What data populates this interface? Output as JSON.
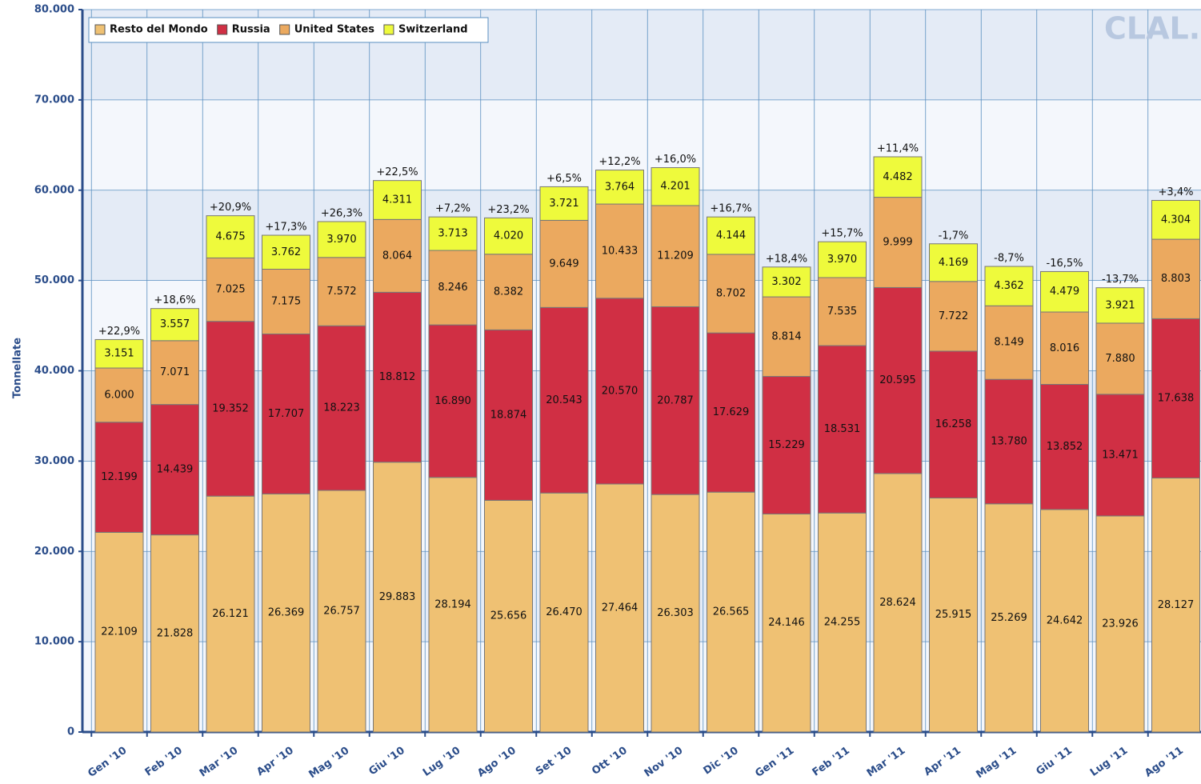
{
  "chart_data": {
    "type": "stacked-bar",
    "y_label": "Tonnellate",
    "logo": "CLAL.it",
    "categories": [
      "Gen '10",
      "Feb '10",
      "Mar '10",
      "Apr '10",
      "Mag '10",
      "Giu '10",
      "Lug '10",
      "Ago '10",
      "Set '10",
      "Ott '10",
      "Nov '10",
      "Dic '10",
      "Gen '11",
      "Feb '11",
      "Mar '11",
      "Apr '11",
      "Mag '11",
      "Giu '11",
      "Lug '11",
      "Ago '11"
    ],
    "series": [
      {
        "name": "Resto del Mondo",
        "color": "#efc173",
        "values": [
          22109,
          21828,
          26121,
          26369,
          26757,
          29883,
          28194,
          25656,
          26470,
          27464,
          26303,
          26565,
          24146,
          24255,
          28624,
          25915,
          25269,
          24642,
          23926,
          28127
        ],
        "value_labels": [
          "22.109",
          "21.828",
          "26.121",
          "26.369",
          "26.757",
          "29.883",
          "28.194",
          "25.656",
          "26.470",
          "27.464",
          "26.303",
          "26.565",
          "24.146",
          "24.255",
          "28.624",
          "25.915",
          "25.269",
          "24.642",
          "23.926",
          "28.127"
        ]
      },
      {
        "name": "Russia",
        "color": "#d02f44",
        "values": [
          12199,
          14439,
          19352,
          17707,
          18223,
          18812,
          16890,
          18874,
          20543,
          20570,
          20787,
          17629,
          15229,
          18531,
          20595,
          16258,
          13780,
          13852,
          13471,
          17638
        ],
        "value_labels": [
          "12.199",
          "14.439",
          "19.352",
          "17.707",
          "18.223",
          "18.812",
          "16.890",
          "18.874",
          "20.543",
          "20.570",
          "20.787",
          "17.629",
          "15.229",
          "18.531",
          "20.595",
          "16.258",
          "13.780",
          "13.852",
          "13.471",
          "17.638"
        ]
      },
      {
        "name": "United States",
        "color": "#eba95f",
        "values": [
          6000,
          7071,
          7025,
          7175,
          7572,
          8064,
          8246,
          8382,
          9649,
          10433,
          11209,
          8702,
          8814,
          7535,
          9999,
          7722,
          8149,
          8016,
          7880,
          8803
        ],
        "value_labels": [
          "6.000",
          "7.071",
          "7.025",
          "7.175",
          "7.572",
          "8.064",
          "8.246",
          "8.382",
          "9.649",
          "10.433",
          "11.209",
          "8.702",
          "8.814",
          "7.535",
          "9.999",
          "7.722",
          "8.149",
          "8.016",
          "7.880",
          "8.803"
        ]
      },
      {
        "name": "Switzerland",
        "color": "#eefa3c",
        "values": [
          3151,
          3557,
          4675,
          3762,
          3970,
          4311,
          3713,
          4020,
          3721,
          3764,
          4201,
          4144,
          3302,
          3970,
          4482,
          4169,
          4362,
          4479,
          3921,
          4304
        ],
        "value_labels": [
          "3.151",
          "3.557",
          "4.675",
          "3.762",
          "3.970",
          "4.311",
          "3.713",
          "4.020",
          "3.721",
          "3.764",
          "4.201",
          "4.144",
          "3.302",
          "3.970",
          "4.482",
          "4.169",
          "4.362",
          "4.479",
          "3.921",
          "4.304"
        ]
      }
    ],
    "top_labels": [
      "+22,9%",
      "+18,6%",
      "+20,9%",
      "+17,3%",
      "+26,3%",
      "+22,5%",
      "+7,2%",
      "+23,2%",
      "+6,5%",
      "+12,2%",
      "+16,0%",
      "+16,7%",
      "+18,4%",
      "+15,7%",
      "+11,4%",
      "-1,7%",
      "-8,7%",
      "-16,5%",
      "-13,7%",
      "+3,4%"
    ],
    "ylim": [
      0,
      80000
    ],
    "yticks": [
      0,
      {
        "value": 10000,
        "label": "10.000"
      },
      {
        "value": 20000,
        "label": "20.000"
      },
      {
        "value": 30000,
        "label": "30.000"
      },
      {
        "value": 40000,
        "label": "40.000"
      },
      {
        "value": 50000,
        "label": "50.000"
      },
      {
        "value": 60000,
        "label": "60.000"
      },
      {
        "value": 70000,
        "label": "70.000"
      },
      {
        "value": 80000,
        "label": "80.000"
      }
    ],
    "grid": true,
    "legend": "top-left"
  }
}
